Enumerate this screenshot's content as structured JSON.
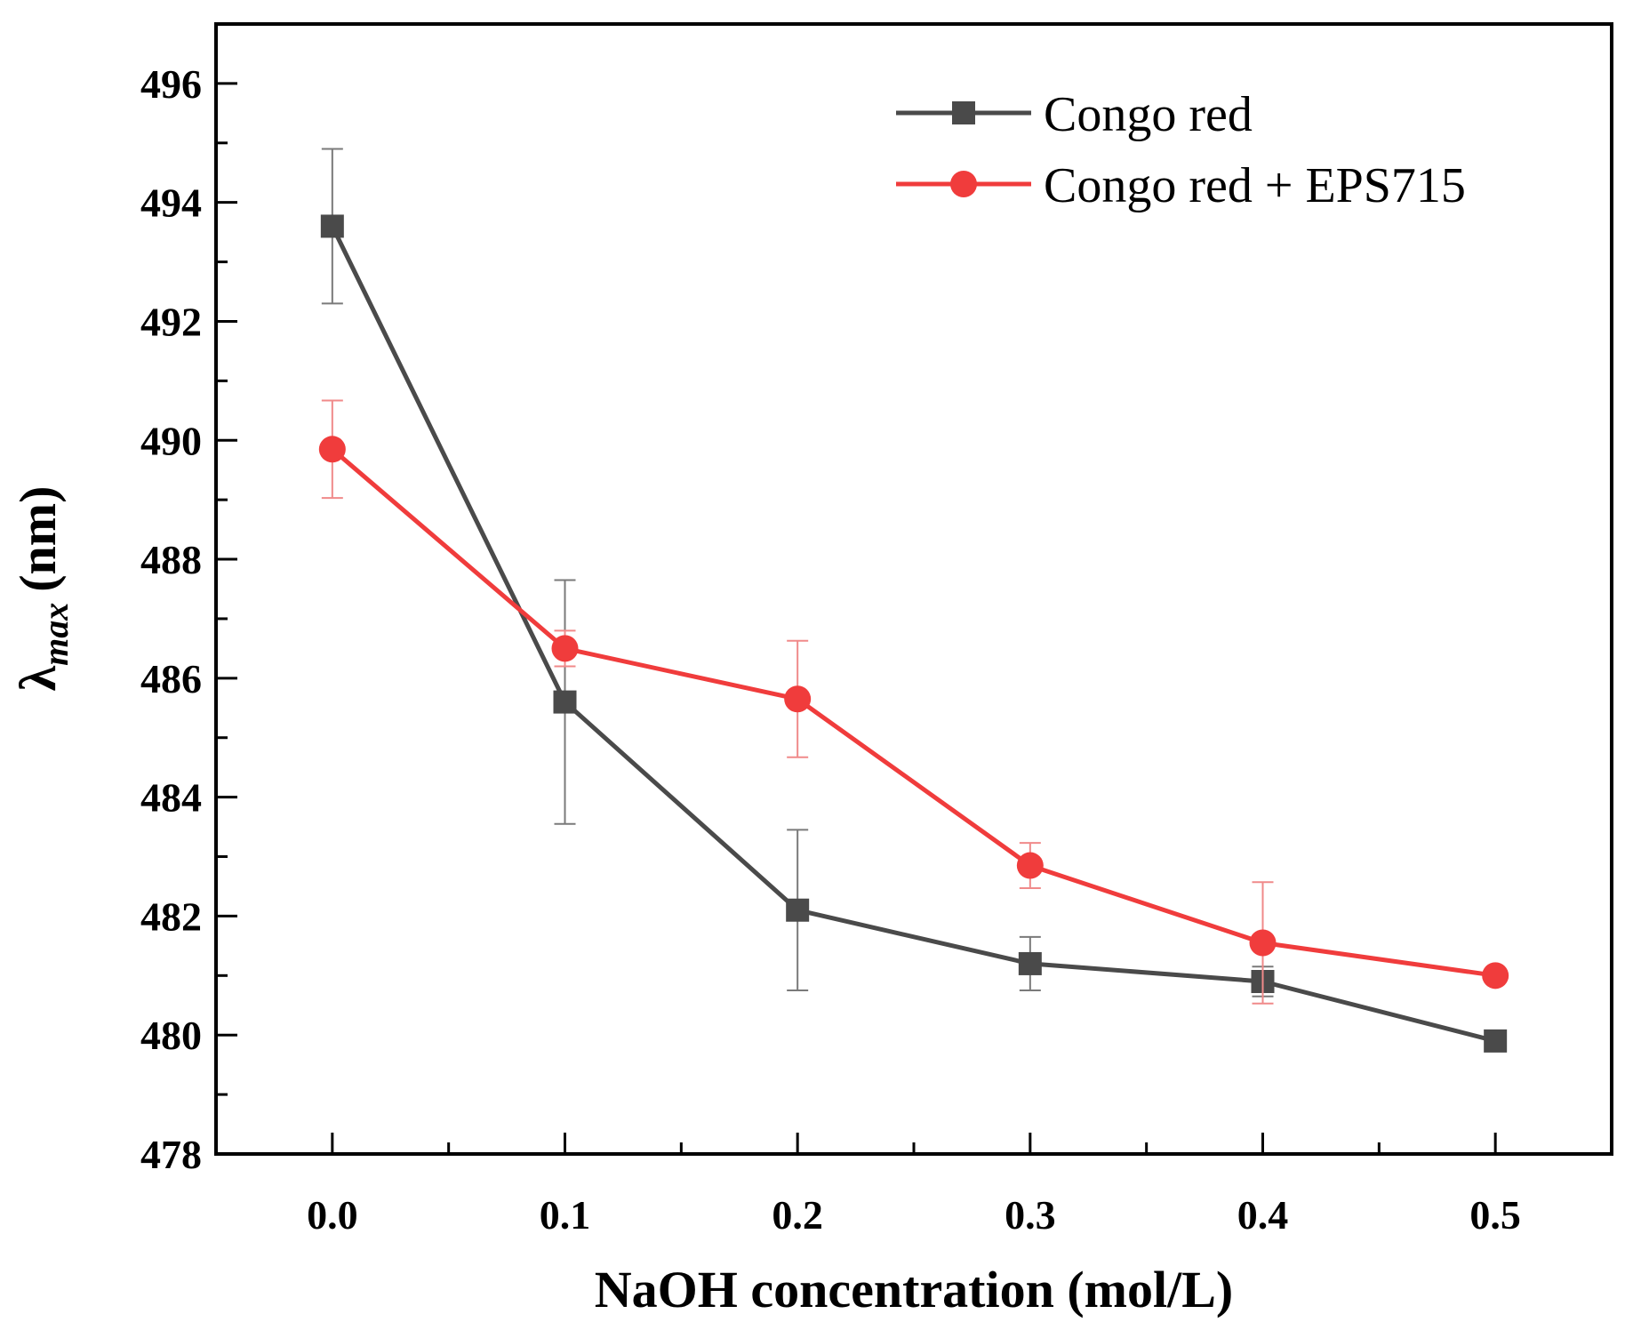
{
  "chart_data": {
    "type": "line",
    "title": "",
    "xlabel": "NaOH concentration (mol/L)",
    "ylabel": {
      "symbol": "λ",
      "subscript": "max",
      "unit": "(nm)"
    },
    "x": [
      0.0,
      0.1,
      0.2,
      0.3,
      0.4,
      0.5
    ],
    "x_tick_labels": [
      "0.0",
      "0.1",
      "0.2",
      "0.3",
      "0.4",
      "0.5"
    ],
    "xlim": [
      -0.05,
      0.55
    ],
    "ylim": [
      478,
      497
    ],
    "y_ticks": [
      478,
      480,
      482,
      484,
      486,
      488,
      490,
      492,
      494,
      496
    ],
    "y_tick_labels": [
      "478",
      "480",
      "482",
      "484",
      "486",
      "488",
      "490",
      "492",
      "494",
      "496"
    ],
    "legend_position": "top-right",
    "grid": false,
    "series": [
      {
        "name": "Congo red",
        "color": "#4a4a4a",
        "marker": "square",
        "values": [
          493.6,
          485.6,
          482.1,
          481.2,
          480.9,
          479.9
        ],
        "errors": [
          1.3,
          2.05,
          1.35,
          0.45,
          0.25,
          0.0
        ]
      },
      {
        "name": "Congo red + EPS715",
        "color": "#f03c3c",
        "marker": "circle",
        "values": [
          489.85,
          486.5,
          485.65,
          482.85,
          481.55,
          481.0
        ],
        "errors": [
          0.82,
          0.3,
          0.98,
          0.38,
          1.02,
          0.0
        ]
      }
    ]
  }
}
